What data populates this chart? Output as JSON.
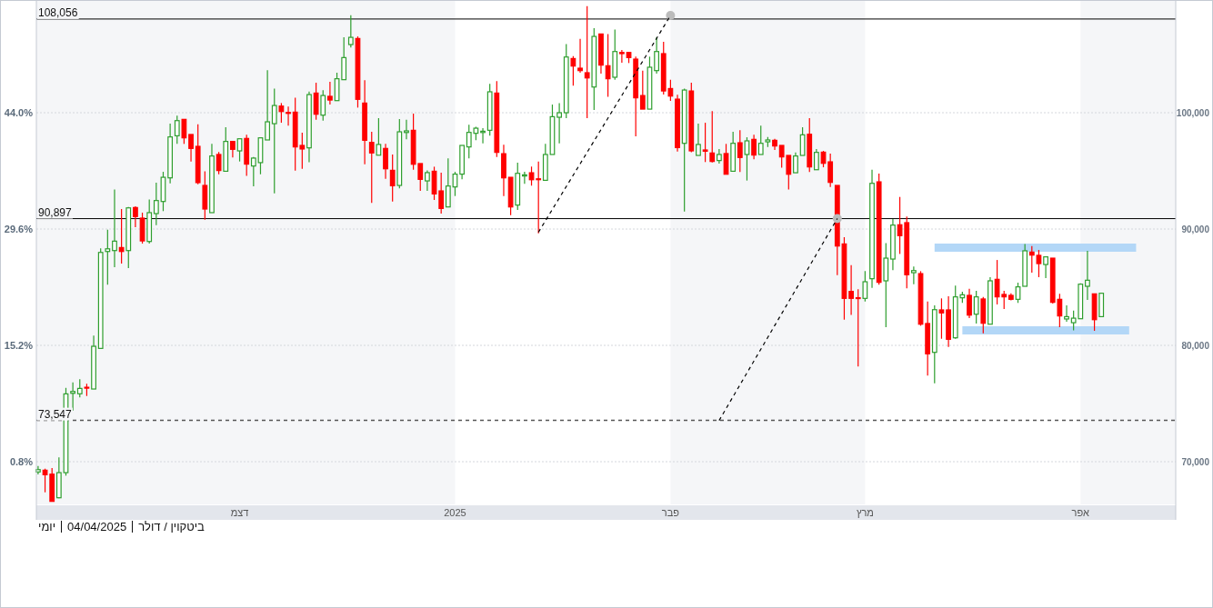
{
  "chart_data": {
    "type": "candlestick",
    "categories": [
      null,
      null,
      null,
      null,
      null,
      null,
      null,
      null,
      null,
      null,
      null,
      null,
      null,
      null,
      null,
      null,
      null,
      null,
      null,
      null,
      null,
      null,
      null,
      null,
      null,
      null,
      null,
      null,
      null,
      "דצמ",
      null,
      null,
      null,
      null,
      null,
      null,
      null,
      null,
      null,
      null,
      null,
      null,
      null,
      null,
      null,
      null,
      null,
      null,
      null,
      null,
      null,
      null,
      null,
      null,
      null,
      null,
      null,
      null,
      null,
      null,
      "2025",
      null,
      null,
      null,
      null,
      null,
      null,
      null,
      null,
      null,
      null,
      null,
      null,
      null,
      null,
      null,
      null,
      null,
      null,
      null,
      null,
      null,
      null,
      null,
      null,
      null,
      null,
      null,
      null,
      null,
      null,
      "פבר",
      null,
      null,
      null,
      null,
      null,
      null,
      null,
      null,
      null,
      null,
      null,
      null,
      null,
      null,
      null,
      null,
      null,
      null,
      null,
      null,
      null,
      null,
      null,
      null,
      null,
      null,
      null,
      "מרץ",
      null,
      null,
      null,
      null,
      null,
      null,
      null,
      null,
      null,
      null,
      null,
      null,
      null,
      null,
      null,
      null,
      null,
      null,
      null,
      null,
      null,
      null,
      null,
      null,
      null,
      null,
      null,
      null,
      null,
      null,
      "אפר",
      null,
      null,
      null,
      null,
      null,
      null,
      null,
      null,
      null,
      null,
      null,
      null,
      null
    ],
    "ohlc": [
      [
        69120,
        69630,
        68910,
        69320
      ],
      [
        69270,
        69400,
        67370,
        68880
      ],
      [
        68930,
        69450,
        66590,
        66590
      ],
      [
        66900,
        70370,
        66850,
        69060
      ],
      [
        69060,
        76350,
        68800,
        75830
      ],
      [
        75880,
        76820,
        74400,
        76040
      ],
      [
        75840,
        77090,
        75520,
        76300
      ],
      [
        76400,
        76700,
        75650,
        76350
      ],
      [
        76250,
        80840,
        76250,
        79920
      ],
      [
        79740,
        88340,
        79740,
        87990
      ],
      [
        88070,
        89950,
        85210,
        88300
      ],
      [
        88150,
        93410,
        86720,
        88960
      ],
      [
        88410,
        91720,
        87030,
        88070
      ],
      [
        88150,
        91900,
        86640,
        91820
      ],
      [
        91850,
        91950,
        90160,
        91070
      ],
      [
        90940,
        91410,
        88750,
        88980
      ],
      [
        88930,
        92550,
        88750,
        91410
      ],
      [
        91330,
        93980,
        90340,
        92450
      ],
      [
        92370,
        94920,
        91540,
        94450
      ],
      [
        94400,
        99060,
        93930,
        97920
      ],
      [
        98020,
        99740,
        97320,
        99320
      ],
      [
        99430,
        99430,
        97320,
        97840
      ],
      [
        98130,
        98130,
        95810,
        96930
      ],
      [
        97110,
        99010,
        93850,
        93990
      ],
      [
        93750,
        94970,
        90810,
        91720
      ],
      [
        91410,
        97320,
        91410,
        96280
      ],
      [
        96410,
        96620,
        94710,
        95030
      ],
      [
        94970,
        98750,
        94970,
        97530
      ],
      [
        97530,
        97530,
        96150,
        96850
      ],
      [
        96720,
        97760,
        95810,
        97760
      ],
      [
        97790,
        98100,
        94580,
        95580
      ],
      [
        95420,
        96200,
        93670,
        96100
      ],
      [
        95710,
        97840,
        94710,
        97840
      ],
      [
        97660,
        103650,
        97660,
        99220
      ],
      [
        99060,
        102080,
        93070,
        100620
      ],
      [
        100570,
        100830,
        99140,
        100100
      ],
      [
        100020,
        100520,
        98880,
        99970
      ],
      [
        100050,
        101300,
        95030,
        97060
      ],
      [
        97190,
        98280,
        95180,
        96880
      ],
      [
        96980,
        101820,
        95750,
        101560
      ],
      [
        101690,
        102580,
        99400,
        99870
      ],
      [
        99790,
        101930,
        99320,
        101480
      ],
      [
        101410,
        102660,
        100700,
        101090
      ],
      [
        101040,
        103440,
        101040,
        102920
      ],
      [
        102840,
        106480,
        102840,
        104740
      ],
      [
        105860,
        108390,
        105600,
        106480
      ],
      [
        106380,
        106560,
        100440,
        101150
      ],
      [
        100830,
        102790,
        95570,
        97630
      ],
      [
        97450,
        98360,
        92240,
        96540
      ],
      [
        96350,
        99530,
        96350,
        97270
      ],
      [
        96930,
        97320,
        94320,
        95180
      ],
      [
        95050,
        96410,
        92370,
        93720
      ],
      [
        93750,
        99450,
        93490,
        98360
      ],
      [
        98300,
        99400,
        97710,
        98440
      ],
      [
        98490,
        99920,
        95100,
        95570
      ],
      [
        95630,
        95630,
        93280,
        94270
      ],
      [
        94140,
        95050,
        93280,
        94850
      ],
      [
        94970,
        95360,
        92500,
        93020
      ],
      [
        93280,
        94850,
        91330,
        91770
      ],
      [
        91900,
        96070,
        91900,
        93700
      ],
      [
        93620,
        94920,
        92840,
        94720
      ],
      [
        94720,
        97190,
        94270,
        97190
      ],
      [
        97060,
        98960,
        96070,
        98310
      ],
      [
        98230,
        98800,
        97630,
        98670
      ],
      [
        98300,
        98670,
        97370,
        98410
      ],
      [
        98490,
        102480,
        98020,
        101800
      ],
      [
        101690,
        102710,
        96200,
        96590
      ],
      [
        96480,
        97240,
        92840,
        94400
      ],
      [
        94450,
        94450,
        91200,
        91900
      ],
      [
        92060,
        95700,
        91640,
        94790
      ],
      [
        94560,
        94920,
        93880,
        94660
      ],
      [
        94840,
        95370,
        93730,
        94240
      ],
      [
        94320,
        95810,
        89640,
        94270
      ],
      [
        94190,
        97320,
        94190,
        96410
      ],
      [
        96410,
        100700,
        96410,
        99660
      ],
      [
        99610,
        100830,
        97370,
        100000
      ],
      [
        100000,
        105910,
        99530,
        104790
      ],
      [
        104660,
        104870,
        102320,
        104010
      ],
      [
        103830,
        106350,
        103440,
        103620
      ],
      [
        103440,
        109170,
        99530,
        102990
      ],
      [
        102210,
        107270,
        100230,
        106560
      ],
      [
        106770,
        106770,
        103360,
        104090
      ],
      [
        104040,
        106770,
        101360,
        102920
      ],
      [
        103050,
        107160,
        102840,
        105260
      ],
      [
        105180,
        105390,
        104300,
        105080
      ],
      [
        105180,
        105180,
        104270,
        104740
      ],
      [
        104610,
        104820,
        97970,
        101280
      ],
      [
        101480,
        103620,
        100310,
        100310
      ],
      [
        100310,
        104820,
        100310,
        103910
      ],
      [
        103620,
        106480,
        103360,
        105260
      ],
      [
        105080,
        106090,
        101560,
        101870
      ],
      [
        102080,
        102840,
        101020,
        101430
      ],
      [
        101170,
        101540,
        96670,
        97000
      ],
      [
        97370,
        102080,
        91510,
        101950
      ],
      [
        101870,
        102580,
        96610,
        96720
      ],
      [
        96330,
        99060,
        96330,
        97270
      ],
      [
        96800,
        99140,
        95760,
        96690
      ],
      [
        96540,
        100130,
        95730,
        95810
      ],
      [
        95890,
        96870,
        95630,
        96410
      ],
      [
        96490,
        97320,
        94710,
        94710
      ],
      [
        94970,
        98360,
        94970,
        97370
      ],
      [
        97420,
        98490,
        94900,
        96150
      ],
      [
        96410,
        97890,
        94170,
        97580
      ],
      [
        97710,
        98100,
        95990,
        96360
      ],
      [
        96410,
        98880,
        96410,
        97370
      ],
      [
        97500,
        97920,
        97060,
        97660
      ],
      [
        97630,
        97760,
        96800,
        97140
      ],
      [
        97190,
        97190,
        95280,
        96200
      ],
      [
        96330,
        96330,
        93410,
        94710
      ],
      [
        94840,
        96590,
        94840,
        96280
      ],
      [
        96330,
        98750,
        96330,
        98100
      ],
      [
        98150,
        99530,
        94900,
        95340
      ],
      [
        95100,
        96870,
        95100,
        96590
      ],
      [
        96610,
        96720,
        95310,
        95650
      ],
      [
        95780,
        96490,
        93620,
        94010
      ],
      [
        93750,
        93750,
        86040,
        88540
      ],
      [
        88720,
        89300,
        82210,
        84040
      ],
      [
        84640,
        86900,
        82610,
        84040
      ],
      [
        84100,
        84820,
        78180,
        84040
      ],
      [
        84040,
        86380,
        83780,
        85470
      ],
      [
        85730,
        95100,
        84950,
        93930
      ],
      [
        94060,
        94770,
        85210,
        85420
      ],
      [
        85550,
        88800,
        81560,
        87500
      ],
      [
        87420,
        90860,
        86460,
        90340
      ],
      [
        90370,
        92760,
        87860,
        89430
      ],
      [
        90550,
        91070,
        84900,
        86070
      ],
      [
        86250,
        86770,
        85260,
        86430
      ],
      [
        86170,
        86380,
        81690,
        81820
      ],
      [
        81880,
        83780,
        77400,
        79270
      ],
      [
        79400,
        83440,
        76750,
        83070
      ],
      [
        83050,
        84040,
        80570,
        82790
      ],
      [
        83050,
        84220,
        79870,
        80520
      ],
      [
        80650,
        85130,
        80570,
        84170
      ],
      [
        84090,
        84610,
        83650,
        84350
      ],
      [
        84300,
        84870,
        82340,
        82600
      ],
      [
        82680,
        84690,
        81880,
        84170
      ],
      [
        83990,
        84170,
        81040,
        81900
      ],
      [
        81820,
        85860,
        81820,
        85550
      ],
      [
        85680,
        87340,
        83520,
        84170
      ],
      [
        84380,
        84690,
        83130,
        84170
      ],
      [
        84300,
        84480,
        83860,
        83960
      ],
      [
        83960,
        85390,
        83650,
        85030
      ],
      [
        85080,
        88720,
        85080,
        88130
      ],
      [
        88020,
        88540,
        86250,
        87760
      ],
      [
        87740,
        88200,
        85860,
        87030
      ],
      [
        86950,
        87610,
        85780,
        87610
      ],
      [
        87500,
        87500,
        83590,
        83700
      ],
      [
        83960,
        84430,
        81560,
        82530
      ],
      [
        82270,
        83440,
        82030,
        82470
      ],
      [
        81950,
        82990,
        81300,
        82340
      ],
      [
        82290,
        85340,
        82290,
        85260
      ],
      [
        85080,
        88130,
        83910,
        85600
      ],
      [
        84430,
        84430,
        81250,
        82210
      ],
      [
        82470,
        84480,
        82470,
        84480
      ],
      null,
      null,
      null,
      null,
      null,
      null,
      null,
      null,
      null,
      null
    ],
    "colors": [
      "#2e9e2e",
      "#ff0000",
      "#ff0000",
      "#2e9e2e",
      "#2e9e2e",
      "#2e9e2e",
      "#2e9e2e",
      "#ff0000",
      "#2e9e2e",
      "#2e9e2e",
      "#2e9e2e",
      "#2e9e2e",
      "#ff0000",
      "#2e9e2e",
      "#ff0000",
      "#ff0000",
      "#2e9e2e",
      "#2e9e2e",
      "#2e9e2e",
      "#2e9e2e",
      "#2e9e2e",
      "#ff0000",
      "#ff0000",
      "#ff0000",
      "#ff0000",
      "#2e9e2e",
      "#ff0000",
      "#2e9e2e",
      "#ff0000",
      "#2e9e2e",
      "#ff0000",
      "#2e9e2e",
      "#2e9e2e",
      "#2e9e2e",
      "#2e9e2e",
      "#ff0000",
      "#ff0000",
      "#ff0000",
      "#ff0000",
      "#2e9e2e",
      "#ff0000",
      "#2e9e2e",
      "#ff0000",
      "#2e9e2e",
      "#2e9e2e",
      "#2e9e2e",
      "#ff0000",
      "#ff0000",
      "#ff0000",
      "#2e9e2e",
      "#ff0000",
      "#ff0000",
      "#2e9e2e",
      "#2e9e2e",
      "#ff0000",
      "#ff0000",
      "#2e9e2e",
      "#ff0000",
      "#ff0000",
      "#2e9e2e",
      "#2e9e2e",
      "#2e9e2e",
      "#2e9e2e",
      "#2e9e2e",
      "#2e9e2e",
      "#2e9e2e",
      "#ff0000",
      "#ff0000",
      "#ff0000",
      "#2e9e2e",
      "#2e9e2e",
      "#ff0000",
      "#ff0000",
      "#2e9e2e",
      "#2e9e2e",
      "#2e9e2e",
      "#2e9e2e",
      "#ff0000",
      "#ff0000",
      "#ff0000",
      "#2e9e2e",
      "#ff0000",
      "#ff0000",
      "#2e9e2e",
      "#ff0000",
      "#ff0000",
      "#ff0000",
      "#ff0000",
      "#2e9e2e",
      "#2e9e2e",
      "#ff0000",
      "#ff0000",
      "#ff0000",
      "#2e9e2e",
      "#ff0000",
      "#2e9e2e",
      "#ff0000",
      "#ff0000",
      "#2e9e2e",
      "#ff0000",
      "#2e9e2e",
      "#ff0000",
      "#2e9e2e",
      "#ff0000",
      "#2e9e2e",
      "#2e9e2e",
      "#ff0000",
      "#ff0000",
      "#ff0000",
      "#2e9e2e",
      "#2e9e2e",
      "#ff0000",
      "#2e9e2e",
      "#ff0000",
      "#ff0000",
      "#ff0000",
      "#ff0000",
      "#ff0000",
      "#ff0000",
      "#2e9e2e",
      "#2e9e2e",
      "#ff0000",
      "#2e9e2e",
      "#2e9e2e",
      "#ff0000",
      "#ff0000",
      "#2e9e2e",
      "#ff0000",
      "#ff0000",
      "#2e9e2e",
      "#ff0000",
      "#ff0000",
      "#2e9e2e",
      "#2e9e2e",
      "#ff0000",
      "#2e9e2e",
      "#ff0000",
      "#2e9e2e",
      "#ff0000",
      "#ff0000",
      "#ff0000",
      "#2e9e2e",
      "#2e9e2e",
      "#ff0000",
      "#ff0000",
      "#2e9e2e",
      "#ff0000",
      "#ff0000",
      "#2e9e2e",
      "#2e9e2e",
      "#2e9e2e",
      "#2e9e2e",
      "#ff0000",
      "#2e9e2e",
      null,
      null,
      null,
      null,
      null,
      null,
      null,
      null,
      null,
      null
    ],
    "series": [
      {
        "type": "line",
        "color": "#000000",
        "line_style": "dashed",
        "values": [
          null,
          null,
          null,
          null,
          null,
          null,
          null,
          null,
          null,
          null,
          null,
          null,
          null,
          null,
          null,
          null,
          null,
          null,
          null,
          null,
          null,
          null,
          null,
          null,
          null,
          null,
          null,
          null,
          null,
          null,
          null,
          null,
          null,
          null,
          null,
          null,
          null,
          null,
          null,
          null,
          null,
          null,
          null,
          null,
          null,
          null,
          null,
          null,
          null,
          null,
          null,
          null,
          null,
          null,
          null,
          null,
          null,
          null,
          null,
          null,
          null,
          null,
          null,
          null,
          null,
          null,
          null,
          null,
          null,
          null,
          null,
          null,
          89730,
          90710,
          91690,
          92670,
          93650,
          94630,
          95610,
          96590,
          97570,
          98550,
          99530,
          100510,
          101490,
          102470,
          103450,
          104430,
          105410,
          106390,
          107380,
          108360,
          null,
          null,
          null,
          null,
          null,
          null,
          null,
          null,
          null,
          null,
          null,
          null,
          null,
          null,
          null,
          null,
          null,
          null,
          null,
          null,
          null,
          null,
          null,
          null,
          null,
          null,
          null,
          null,
          null,
          null,
          null,
          null,
          null,
          null,
          null,
          null,
          null,
          null,
          null,
          null,
          null,
          null,
          null,
          null,
          null,
          null,
          null,
          null,
          null,
          null,
          null,
          null,
          null,
          null,
          null,
          null,
          null,
          null,
          null,
          null,
          null,
          null,
          null,
          null,
          null,
          null,
          null,
          null,
          null,
          null,
          null,
          null
        ]
      },
      {
        "type": "line",
        "color": "#000000",
        "line_style": "dashed",
        "values": [
          null,
          null,
          null,
          null,
          null,
          null,
          null,
          null,
          null,
          null,
          null,
          null,
          null,
          null,
          null,
          null,
          null,
          null,
          null,
          null,
          null,
          null,
          null,
          null,
          null,
          null,
          null,
          null,
          null,
          null,
          null,
          null,
          null,
          null,
          null,
          null,
          null,
          null,
          null,
          null,
          null,
          null,
          null,
          null,
          null,
          null,
          null,
          null,
          null,
          null,
          null,
          null,
          null,
          null,
          null,
          null,
          null,
          null,
          null,
          null,
          null,
          null,
          null,
          null,
          null,
          null,
          null,
          null,
          null,
          null,
          null,
          null,
          null,
          null,
          null,
          null,
          null,
          null,
          null,
          null,
          null,
          null,
          null,
          null,
          null,
          null,
          null,
          null,
          null,
          null,
          null,
          null,
          null,
          null,
          null,
          null,
          null,
          null,
          73550,
          74570,
          75590,
          76610,
          77630,
          78650,
          79670,
          80690,
          81710,
          82730,
          83750,
          84770,
          85790,
          86810,
          87830,
          88850,
          89880,
          90900,
          null,
          null,
          null,
          null,
          null,
          null,
          null,
          null,
          null,
          null,
          null,
          null,
          null,
          null,
          null,
          null,
          null,
          null,
          null,
          null,
          null,
          null,
          null,
          null,
          null,
          null,
          null,
          null,
          null,
          null,
          null,
          null,
          null,
          null,
          null,
          null,
          null,
          null,
          null,
          null,
          null,
          null,
          null,
          null,
          null,
          null,
          null,
          null
        ]
      },
      {
        "type": "line",
        "color": "#b3d7f7",
        "line_style": "solid",
        "values": [
          null,
          null,
          null,
          null,
          null,
          null,
          null,
          null,
          null,
          null,
          null,
          null,
          null,
          null,
          null,
          null,
          null,
          null,
          null,
          null,
          null,
          null,
          null,
          null,
          null,
          null,
          null,
          null,
          null,
          null,
          null,
          null,
          null,
          null,
          null,
          null,
          null,
          null,
          null,
          null,
          null,
          null,
          null,
          null,
          null,
          null,
          null,
          null,
          null,
          null,
          null,
          null,
          null,
          null,
          null,
          null,
          null,
          null,
          null,
          null,
          null,
          null,
          null,
          null,
          null,
          null,
          null,
          null,
          null,
          null,
          null,
          null,
          null,
          null,
          null,
          null,
          null,
          null,
          null,
          null,
          null,
          null,
          null,
          null,
          null,
          null,
          null,
          null,
          null,
          null,
          null,
          null,
          null,
          null,
          null,
          null,
          null,
          null,
          null,
          null,
          null,
          null,
          null,
          null,
          null,
          null,
          null,
          null,
          null,
          null,
          null,
          null,
          null,
          null,
          null,
          null,
          null,
          null,
          null,
          null,
          null,
          null,
          null,
          null,
          null,
          null,
          null,
          null,
          null,
          88400,
          88400,
          88400,
          88400,
          88400,
          88400,
          88400,
          88400,
          88400,
          88400,
          88400,
          88400,
          88400,
          88400,
          88400,
          88400,
          88400,
          88400,
          88400,
          88400,
          88400,
          88400,
          88400,
          88400,
          88400,
          88400,
          88400,
          88400,
          88400,
          88400,
          null,
          null,
          null,
          null,
          null
        ]
      },
      {
        "type": "line",
        "color": "#b3d7f7",
        "line_style": "solid",
        "values": [
          null,
          null,
          null,
          null,
          null,
          null,
          null,
          null,
          null,
          null,
          null,
          null,
          null,
          null,
          null,
          null,
          null,
          null,
          null,
          null,
          null,
          null,
          null,
          null,
          null,
          null,
          null,
          null,
          null,
          null,
          null,
          null,
          null,
          null,
          null,
          null,
          null,
          null,
          null,
          null,
          null,
          null,
          null,
          null,
          null,
          null,
          null,
          null,
          null,
          null,
          null,
          null,
          null,
          null,
          null,
          null,
          null,
          null,
          null,
          null,
          null,
          null,
          null,
          null,
          null,
          null,
          null,
          null,
          null,
          null,
          null,
          null,
          null,
          null,
          null,
          null,
          null,
          null,
          null,
          null,
          null,
          null,
          null,
          null,
          null,
          null,
          null,
          null,
          null,
          null,
          null,
          null,
          null,
          null,
          null,
          null,
          null,
          null,
          null,
          null,
          null,
          null,
          null,
          null,
          null,
          null,
          null,
          null,
          null,
          null,
          null,
          null,
          null,
          null,
          null,
          null,
          null,
          null,
          null,
          null,
          null,
          null,
          null,
          null,
          null,
          null,
          null,
          null,
          null,
          null,
          null,
          null,
          null,
          81290,
          81290,
          81290,
          81290,
          81290,
          81290,
          81290,
          81290,
          81290,
          81290,
          81290,
          81290,
          81290,
          81290,
          81290,
          81290,
          81290,
          81290,
          81290,
          81290,
          81290,
          81290,
          81290,
          81290,
          81290,
          null,
          null,
          null,
          null,
          null,
          null
        ]
      },
      {
        "type": "scatter",
        "color": "#bbbbbb",
        "marker": "circle",
        "values": [
          null,
          null,
          null,
          null,
          null,
          null,
          null,
          null,
          null,
          null,
          null,
          null,
          null,
          null,
          null,
          null,
          null,
          null,
          null,
          null,
          null,
          null,
          null,
          null,
          null,
          null,
          null,
          null,
          null,
          null,
          null,
          null,
          null,
          null,
          null,
          null,
          null,
          null,
          null,
          null,
          null,
          null,
          null,
          null,
          null,
          null,
          null,
          null,
          null,
          null,
          null,
          null,
          null,
          null,
          null,
          null,
          null,
          null,
          null,
          null,
          null,
          null,
          null,
          null,
          null,
          null,
          null,
          null,
          null,
          null,
          null,
          null,
          null,
          null,
          null,
          null,
          null,
          null,
          null,
          null,
          null,
          null,
          null,
          null,
          null,
          null,
          null,
          null,
          null,
          null,
          null,
          108360,
          null,
          null,
          null,
          null,
          null,
          null,
          null,
          null,
          null,
          null,
          null,
          null,
          null,
          null,
          null,
          null,
          null,
          null,
          null,
          null,
          null,
          null,
          null,
          90900,
          null,
          null,
          null,
          null,
          null,
          null,
          null,
          null,
          null,
          null,
          null,
          null,
          null,
          null,
          null,
          null,
          null,
          null,
          null,
          null,
          null,
          null,
          null,
          null,
          null,
          null,
          null,
          null,
          null,
          null,
          null,
          null,
          null,
          null,
          null,
          null,
          null,
          null,
          null,
          null,
          null,
          null,
          null,
          null,
          null,
          null,
          null,
          null
        ]
      }
    ],
    "ylim": [
      66330,
      109690
    ],
    "yticks": [
      {
        "value": 70000,
        "label": "70,000"
      },
      {
        "value": 80000,
        "label": "80,000"
      },
      {
        "value": 90000,
        "label": "90,000"
      },
      {
        "value": 100000,
        "label": "100,000"
      }
    ],
    "y2lim": [
      -4.485,
      57.95
    ],
    "y2ticks": [
      {
        "value": 0.8,
        "label": "0.8%"
      },
      {
        "value": 15.2,
        "label": "15.2%"
      },
      {
        "value": 29.6,
        "label": "29.6%"
      },
      {
        "value": 44.0,
        "label": "44.0%"
      }
    ],
    "grid": "y",
    "ref_lines": [
      {
        "axis": "y",
        "value": 108056,
        "label": "108,056",
        "color": "#000000",
        "line_style": "solid"
      },
      {
        "axis": "y",
        "value": 90897,
        "label": "90,897",
        "color": "#000000",
        "line_style": "solid"
      },
      {
        "axis": "y",
        "value": 73547,
        "label": "73,547",
        "color": "#555555",
        "line_style": "dashed"
      }
    ],
    "bands": [
      {
        "axis": "x",
        "from": "2025",
        "to": "פבר",
        "color": "#ffffff"
      },
      {
        "axis": "x",
        "from": "מרץ",
        "to": "אפר",
        "color": "#ffffff"
      }
    ],
    "annotations": [
      "ביטקוין / דולר",
      "04/04/2025",
      "יומי"
    ]
  }
}
